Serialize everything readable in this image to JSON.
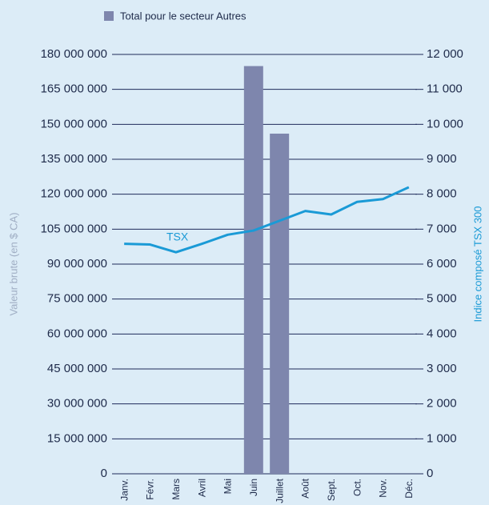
{
  "chart_data": {
    "type": "bar",
    "categories": [
      "Janv.",
      "Févr.",
      "Mars",
      "Avril",
      "Mai",
      "Juin",
      "Juillet",
      "Août",
      "Sept.",
      "Oct.",
      "Nov.",
      "Déc."
    ],
    "series": [
      {
        "name": "Total pour le secteur Autres",
        "type": "bar",
        "color": "#7e86ad",
        "values": [
          0,
          0,
          0,
          0,
          0,
          175000000,
          146000000,
          0,
          0,
          0,
          0,
          0
        ]
      },
      {
        "name": "TSX",
        "type": "line",
        "axis": "y2",
        "color": "#1a9ad6",
        "values": [
          6580,
          6560,
          6340,
          6580,
          6840,
          6960,
          7240,
          7520,
          7420,
          7780,
          7860,
          8200
        ]
      }
    ],
    "ylabel": "Valeur brute (en $ CA)",
    "y2label": "Indice composé TSX 300",
    "annotation": "TSX",
    "ylim": [
      0,
      180000000
    ],
    "yticks": [
      0,
      {
        "value": 15000000,
        "label": "15 000 000"
      },
      {
        "value": 30000000,
        "label": "30 000 000"
      },
      {
        "value": 45000000,
        "label": "45 000 000"
      },
      {
        "value": 60000000,
        "label": "60 000 000"
      },
      {
        "value": 75000000,
        "label": "75 000 000"
      },
      {
        "value": 90000000,
        "label": "90 000 000"
      },
      {
        "value": 105000000,
        "label": "105 000 000"
      },
      {
        "value": 120000000,
        "label": "120 000 000"
      },
      {
        "value": 135000000,
        "label": "135 000 000"
      },
      {
        "value": 150000000,
        "label": "150 000 000"
      },
      {
        "value": 165000000,
        "label": "165 000 000"
      },
      {
        "value": 180000000,
        "label": "180 000 000"
      }
    ],
    "y2lim": [
      0,
      12000
    ],
    "y2ticks": [
      0,
      {
        "value": 1000,
        "label": "1 000"
      },
      {
        "value": 2000,
        "label": "2 000"
      },
      {
        "value": 3000,
        "label": "3 000"
      },
      {
        "value": 4000,
        "label": "4 000"
      },
      {
        "value": 5000,
        "label": "5 000"
      },
      {
        "value": 6000,
        "label": "6 000"
      },
      {
        "value": 7000,
        "label": "7 000"
      },
      {
        "value": 8000,
        "label": "8 000"
      },
      {
        "value": 9000,
        "label": "9 000"
      },
      {
        "value": 10000,
        "label": "10 000"
      },
      {
        "value": 11000,
        "label": "11 000"
      },
      {
        "value": 12000,
        "label": "12 000"
      }
    ],
    "grid": true
  }
}
